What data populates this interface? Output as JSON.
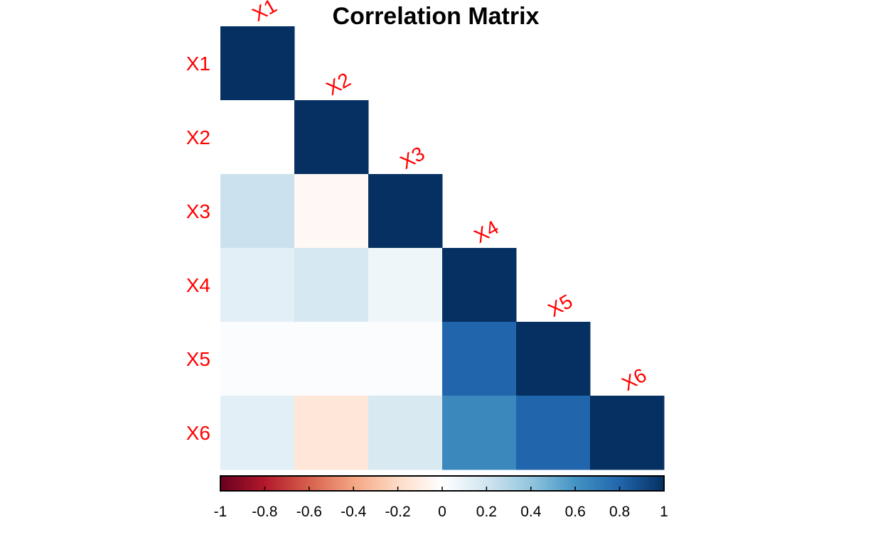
{
  "chart_data": {
    "type": "heatmap",
    "title": "Correlation Matrix",
    "variables": [
      "X1",
      "X2",
      "X3",
      "X4",
      "X5",
      "X6"
    ],
    "layout": "lower-triangular",
    "matrix": [
      [
        1.0,
        0.0,
        0.22,
        0.12,
        0.02,
        0.12
      ],
      [
        0.0,
        1.0,
        -0.04,
        0.18,
        0.02,
        -0.14
      ],
      [
        0.22,
        -0.04,
        1.0,
        0.07,
        0.02,
        0.17
      ],
      [
        0.12,
        0.18,
        0.07,
        1.0,
        0.8,
        0.65
      ],
      [
        0.02,
        0.02,
        0.02,
        0.8,
        1.0,
        0.8
      ],
      [
        0.12,
        -0.14,
        0.17,
        0.65,
        0.8,
        1.0
      ]
    ],
    "colorbar": {
      "range": [
        -1,
        1
      ],
      "ticks": [
        -1,
        -0.8,
        -0.6,
        -0.4,
        -0.2,
        0,
        0.2,
        0.4,
        0.6,
        0.8,
        1
      ],
      "tick_labels": [
        "-1",
        "-0.8",
        "-0.6",
        "-0.4",
        "-0.2",
        "0",
        "0.2",
        "0.4",
        "0.6",
        "0.8",
        "1"
      ],
      "colors": [
        "#67001F",
        "#B2182B",
        "#D6604D",
        "#F4A582",
        "#FDDBC7",
        "#FFFFFF",
        "#D1E5F0",
        "#92C5DE",
        "#4393C3",
        "#2166AC",
        "#053061"
      ]
    },
    "label_color": "#FF0000"
  }
}
